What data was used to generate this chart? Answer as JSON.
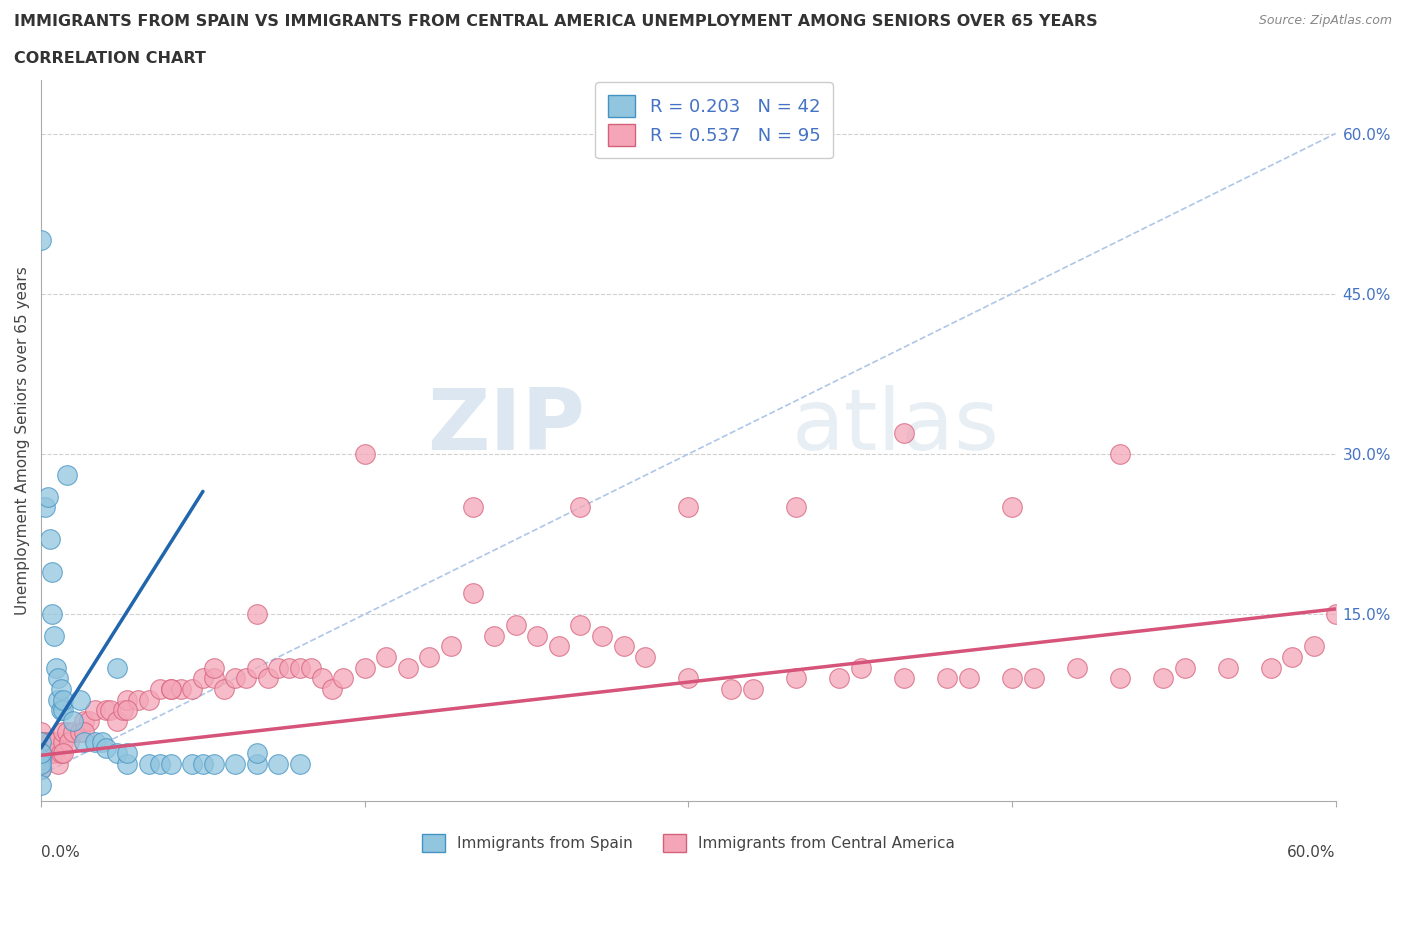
{
  "title_line1": "IMMIGRANTS FROM SPAIN VS IMMIGRANTS FROM CENTRAL AMERICA UNEMPLOYMENT AMONG SENIORS OVER 65 YEARS",
  "title_line2": "CORRELATION CHART",
  "source_text": "Source: ZipAtlas.com",
  "ylabel": "Unemployment Among Seniors over 65 years",
  "xlim": [
    0,
    0.6
  ],
  "ylim": [
    -0.025,
    0.65
  ],
  "watermark_zip": "ZIP",
  "watermark_atlas": "atlas",
  "legend_r_spain": "R = 0.203",
  "legend_n_spain": "N = 42",
  "legend_r_ca": "R = 0.537",
  "legend_n_ca": "N = 95",
  "spain_color": "#92c5de",
  "spain_edge": "#4393c3",
  "ca_color": "#f4a6b8",
  "ca_edge": "#d6607a",
  "trendline_spain_color": "#2166ac",
  "trendline_ca_color": "#d6537a",
  "diagonal_color": "#aec7e8",
  "spain_trend_x0": 0.0,
  "spain_trend_x1": 0.075,
  "spain_trend_y0": 0.025,
  "spain_trend_y1": 0.265,
  "ca_trend_x0": 0.0,
  "ca_trend_x1": 0.6,
  "ca_trend_y0": 0.018,
  "ca_trend_y1": 0.155,
  "spain_x": [
    0.0,
    0.0,
    0.0,
    0.0,
    0.0,
    0.0,
    0.002,
    0.003,
    0.004,
    0.005,
    0.005,
    0.006,
    0.007,
    0.008,
    0.008,
    0.009,
    0.009,
    0.01,
    0.01,
    0.012,
    0.015,
    0.018,
    0.02,
    0.025,
    0.028,
    0.03,
    0.035,
    0.035,
    0.04,
    0.04,
    0.05,
    0.055,
    0.06,
    0.07,
    0.075,
    0.08,
    0.09,
    0.1,
    0.1,
    0.11,
    0.12,
    0.0
  ],
  "spain_y": [
    0.5,
    0.03,
    0.015,
    0.005,
    0.01,
    0.02,
    0.25,
    0.26,
    0.22,
    0.19,
    0.15,
    0.13,
    0.1,
    0.09,
    0.07,
    0.08,
    0.06,
    0.06,
    0.07,
    0.28,
    0.05,
    0.07,
    0.03,
    0.03,
    0.03,
    0.025,
    0.02,
    0.1,
    0.01,
    0.02,
    0.01,
    0.01,
    0.01,
    0.01,
    0.01,
    0.01,
    0.01,
    0.01,
    0.02,
    0.01,
    0.01,
    -0.01
  ],
  "ca_x": [
    0.0,
    0.0,
    0.0,
    0.0,
    0.0,
    0.002,
    0.003,
    0.004,
    0.005,
    0.006,
    0.007,
    0.008,
    0.009,
    0.01,
    0.01,
    0.012,
    0.013,
    0.015,
    0.018,
    0.02,
    0.022,
    0.025,
    0.03,
    0.032,
    0.035,
    0.038,
    0.04,
    0.045,
    0.05,
    0.055,
    0.06,
    0.065,
    0.07,
    0.075,
    0.08,
    0.085,
    0.09,
    0.095,
    0.1,
    0.105,
    0.11,
    0.115,
    0.12,
    0.125,
    0.13,
    0.135,
    0.14,
    0.15,
    0.16,
    0.17,
    0.18,
    0.19,
    0.2,
    0.21,
    0.22,
    0.23,
    0.24,
    0.25,
    0.26,
    0.27,
    0.28,
    0.3,
    0.32,
    0.33,
    0.35,
    0.37,
    0.38,
    0.4,
    0.42,
    0.43,
    0.45,
    0.46,
    0.48,
    0.5,
    0.52,
    0.53,
    0.55,
    0.57,
    0.58,
    0.59,
    0.6,
    0.4,
    0.45,
    0.5,
    0.35,
    0.3,
    0.25,
    0.2,
    0.15,
    0.1,
    0.08,
    0.06,
    0.04,
    0.02,
    0.01
  ],
  "ca_y": [
    0.04,
    0.02,
    0.01,
    0.005,
    0.03,
    0.03,
    0.02,
    0.03,
    0.02,
    0.02,
    0.03,
    0.01,
    0.02,
    0.03,
    0.04,
    0.04,
    0.03,
    0.04,
    0.04,
    0.05,
    0.05,
    0.06,
    0.06,
    0.06,
    0.05,
    0.06,
    0.07,
    0.07,
    0.07,
    0.08,
    0.08,
    0.08,
    0.08,
    0.09,
    0.09,
    0.08,
    0.09,
    0.09,
    0.1,
    0.09,
    0.1,
    0.1,
    0.1,
    0.1,
    0.09,
    0.08,
    0.09,
    0.1,
    0.11,
    0.1,
    0.11,
    0.12,
    0.17,
    0.13,
    0.14,
    0.13,
    0.12,
    0.14,
    0.13,
    0.12,
    0.11,
    0.09,
    0.08,
    0.08,
    0.09,
    0.09,
    0.1,
    0.09,
    0.09,
    0.09,
    0.09,
    0.09,
    0.1,
    0.09,
    0.09,
    0.1,
    0.1,
    0.1,
    0.11,
    0.12,
    0.15,
    0.32,
    0.25,
    0.3,
    0.25,
    0.25,
    0.25,
    0.25,
    0.3,
    0.15,
    0.1,
    0.08,
    0.06,
    0.04,
    0.02
  ]
}
